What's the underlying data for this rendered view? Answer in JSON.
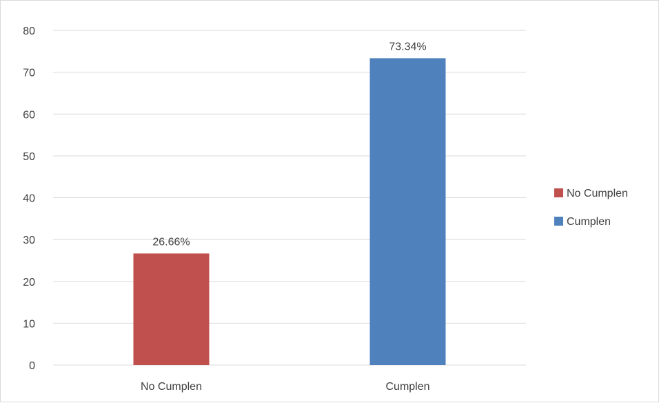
{
  "chart_data": {
    "type": "bar",
    "categories": [
      "No Cumplen",
      "Cumplen"
    ],
    "values": [
      26.66,
      73.34
    ],
    "data_labels": [
      "26.66%",
      "73.34%"
    ],
    "colors": [
      "#c0504d",
      "#4f81bd"
    ],
    "ylim": [
      0,
      80
    ],
    "yticks": [
      0,
      10,
      20,
      30,
      40,
      50,
      60,
      70,
      80
    ],
    "grid": true,
    "legend": {
      "placement": "right",
      "entries": [
        {
          "label": "No Cumplen",
          "color": "#c0504d"
        },
        {
          "label": "Cumplen",
          "color": "#4f81bd"
        }
      ]
    }
  }
}
